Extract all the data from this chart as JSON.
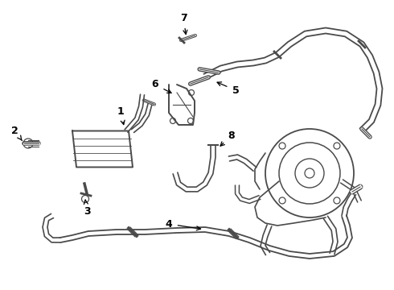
{
  "bg_color": "#ffffff",
  "line_color": "#4a4a4a",
  "label_color": "#000000",
  "fig_width": 4.9,
  "fig_height": 3.6,
  "dpi": 100
}
